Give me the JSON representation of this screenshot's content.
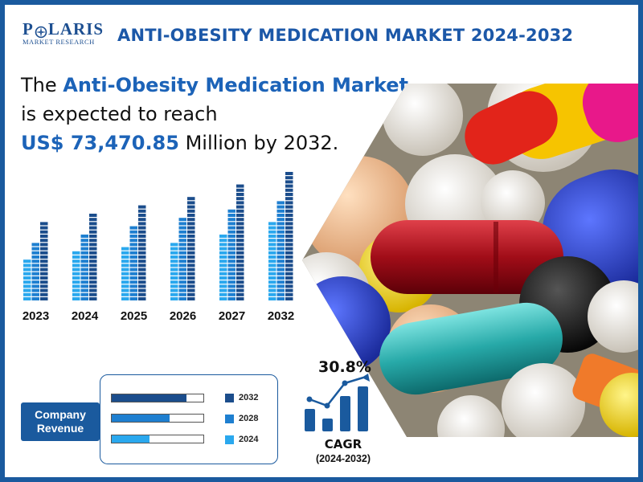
{
  "logo": {
    "brand": "POLARIS",
    "brand_p": "P",
    "brand_rest": "LARIS",
    "sub": "MARKET RESEARCH"
  },
  "title": "ANTI-OBESITY MEDICATION MARKET 2024-2032",
  "headline": {
    "pre": "The ",
    "market": "Anti-Obesity Medication Market",
    "line2": "is expected to reach",
    "value": "US$ 73,470.85",
    "post": " Million by 2032."
  },
  "colors": {
    "dark": "#1b4d8c",
    "mid": "#1e7fd0",
    "light": "#2aa8ee",
    "frame": "#1a5a9e"
  },
  "chart_data": [
    {
      "type": "bar",
      "title": "",
      "categories": [
        "2023",
        "2024",
        "2025",
        "2026",
        "2027",
        "2032"
      ],
      "series": [
        {
          "values": [
            56,
            62,
            69,
            76,
            85,
            104
          ]
        },
        {
          "values": [
            77,
            87,
            96,
            106,
            117,
            130
          ]
        },
        {
          "values": [
            100,
            110,
            122,
            135,
            150,
            167
          ]
        }
      ],
      "ylim": [
        0,
        170
      ]
    },
    {
      "type": "bar",
      "orientation": "horizontal",
      "title": "Company Revenue",
      "categories": [
        "2032",
        "2028",
        "2024"
      ],
      "values": [
        0.82,
        0.63,
        0.41
      ],
      "ylim": [
        0,
        1
      ]
    }
  ],
  "revenue": {
    "label_line1": "Company",
    "label_line2": "Revenue"
  },
  "cagr": {
    "value": "30.8%",
    "label": "CAGR",
    "period": "(2024-2032)"
  }
}
